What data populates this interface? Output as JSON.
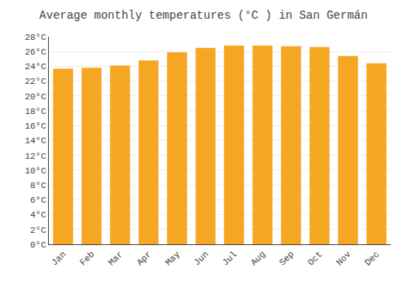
{
  "chart_data": {
    "type": "bar",
    "title": "Average monthly temperatures (°C ) in San Germán",
    "categories": [
      "Jan",
      "Feb",
      "Mar",
      "Apr",
      "May",
      "Jun",
      "Jul",
      "Aug",
      "Sep",
      "Oct",
      "Nov",
      "Dec"
    ],
    "values": [
      23.7,
      23.8,
      24.1,
      24.8,
      25.9,
      26.5,
      26.8,
      26.8,
      26.7,
      26.6,
      25.4,
      24.4
    ],
    "color": "#F5A623",
    "ylim": [
      0,
      28
    ],
    "yticks": [
      {
        "value": 0,
        "label": "0°C"
      },
      {
        "value": 2,
        "label": "2°C"
      },
      {
        "value": 4,
        "label": "4°C"
      },
      {
        "value": 6,
        "label": "6°C"
      },
      {
        "value": 8,
        "label": "8°C"
      },
      {
        "value": 10,
        "label": "10°C"
      },
      {
        "value": 12,
        "label": "12°C"
      },
      {
        "value": 14,
        "label": "14°C"
      },
      {
        "value": 16,
        "label": "16°C"
      },
      {
        "value": 18,
        "label": "18°C"
      },
      {
        "value": 20,
        "label": "20°C"
      },
      {
        "value": 22,
        "label": "22°C"
      },
      {
        "value": 24,
        "label": "24°C"
      },
      {
        "value": 26,
        "label": "26°C"
      },
      {
        "value": 28,
        "label": "28°C"
      }
    ],
    "grid": true
  }
}
